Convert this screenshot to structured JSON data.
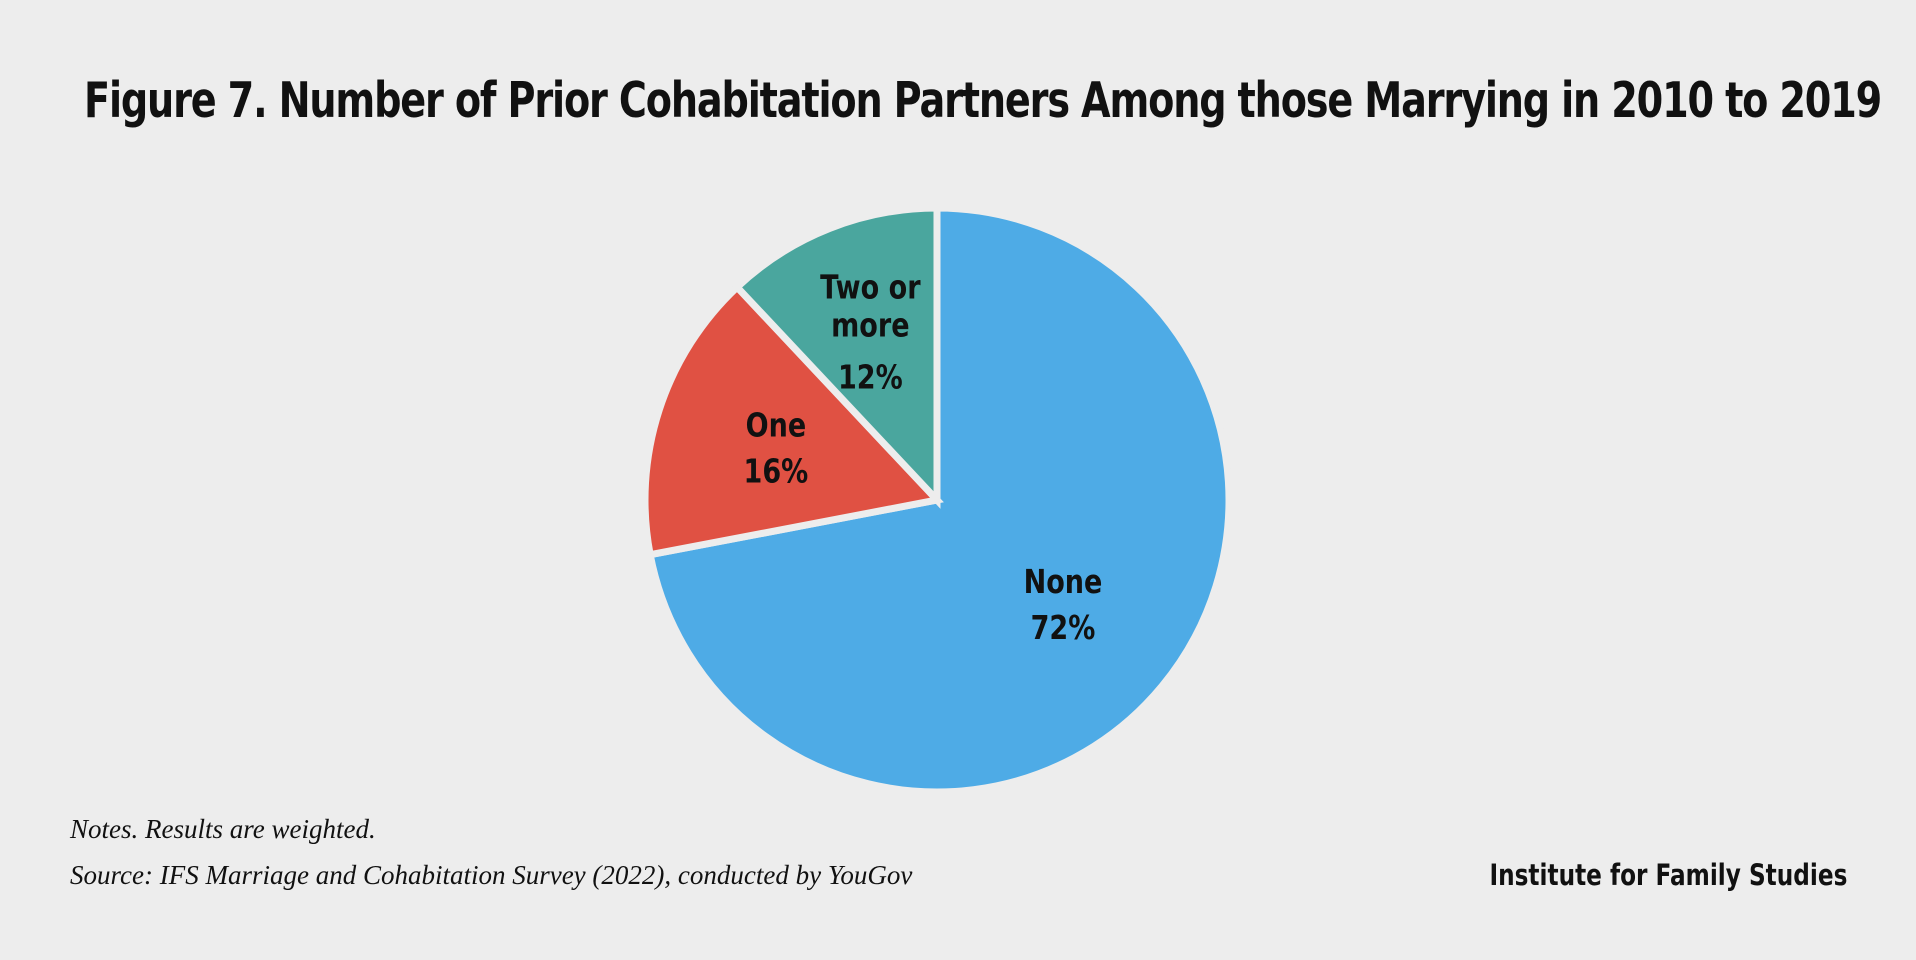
{
  "title": "Figure 7. Number of Prior Cohabitation Partners Among those Marrying in 2010 to 2019",
  "notes": "Notes. Results are weighted.",
  "source": "Source: IFS Marriage and Cohabitation Survey (2022), conducted by YouGov",
  "credit": "Institute for Family Studies",
  "chart_data": {
    "type": "pie",
    "title": "Figure 7. Number of Prior Cohabitation Partners Among those Marrying in 2010 to 2019",
    "slices": [
      {
        "label": "None",
        "value_label": "72%",
        "value": 72,
        "color": "#4eabe6"
      },
      {
        "label": "One",
        "value_label": "16%",
        "value": 16,
        "color": "#e05143"
      },
      {
        "label": "Two or more",
        "value_label": "12%",
        "value": 12,
        "color": "#4aa69e"
      }
    ],
    "start_angle": "12 o'clock",
    "direction": "clockwise",
    "legend": "none",
    "labels_on_slices": true
  }
}
